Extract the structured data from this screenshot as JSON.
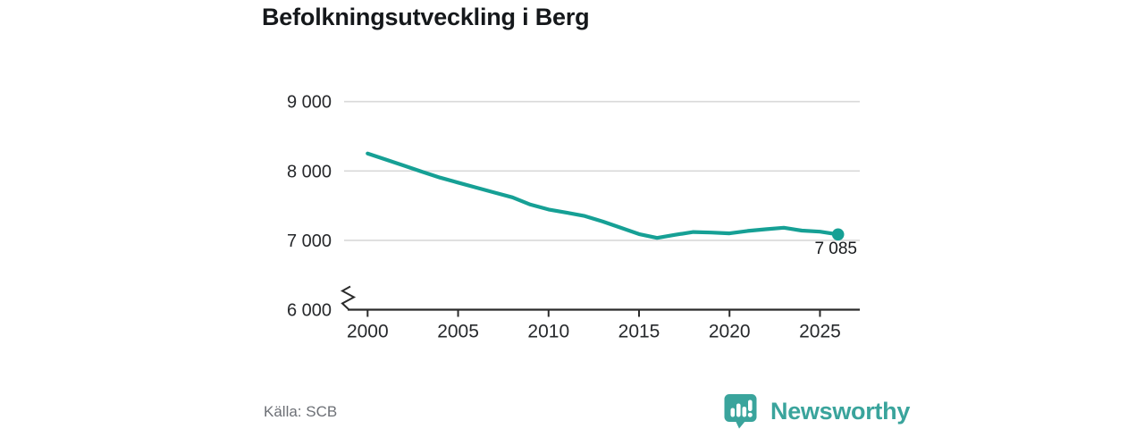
{
  "title": "Befolkningsutveckling i Berg",
  "footer": {
    "source": "Källa: SCB",
    "brand": "Newsworthy"
  },
  "colors": {
    "line": "#16a095",
    "logo_teal": "#3aa49c",
    "grid": "#d9d9d9",
    "axis": "#2b2b2b",
    "tick_text": "#26282b",
    "title_text": "#15181b",
    "annotation_text": "#16191c",
    "muted_text": "#6d7076"
  },
  "chart_data": {
    "type": "line",
    "title": "Befolkningsutveckling i Berg",
    "x": [
      2000,
      2001,
      2002,
      2003,
      2004,
      2005,
      2006,
      2007,
      2008,
      2009,
      2010,
      2011,
      2012,
      2013,
      2014,
      2015,
      2016,
      2017,
      2018,
      2019,
      2020,
      2021,
      2022,
      2023,
      2024,
      2025,
      2026
    ],
    "values": [
      8253,
      8165,
      8078,
      7990,
      7905,
      7832,
      7760,
      7690,
      7620,
      7515,
      7445,
      7400,
      7350,
      7270,
      7180,
      7090,
      7035,
      7080,
      7120,
      7112,
      7100,
      7135,
      7160,
      7182,
      7140,
      7125,
      7085
    ],
    "xlabel": "",
    "ylabel": "",
    "xticks": [
      2000,
      2005,
      2010,
      2015,
      2020,
      2025
    ],
    "xtick_labels": [
      "2000",
      "2005",
      "2010",
      "2015",
      "2020",
      "2025"
    ],
    "yticks": [
      6000,
      7000,
      8000,
      9000
    ],
    "ytick_labels": [
      "6 000",
      "7 000",
      "8 000",
      "9 000"
    ],
    "ylim": [
      6000,
      9000
    ],
    "xlim": [
      1998.7,
      2027.2
    ],
    "grid": "horizontal",
    "y_axis_break": true,
    "last_point_label": "7 085",
    "legend": "none"
  }
}
